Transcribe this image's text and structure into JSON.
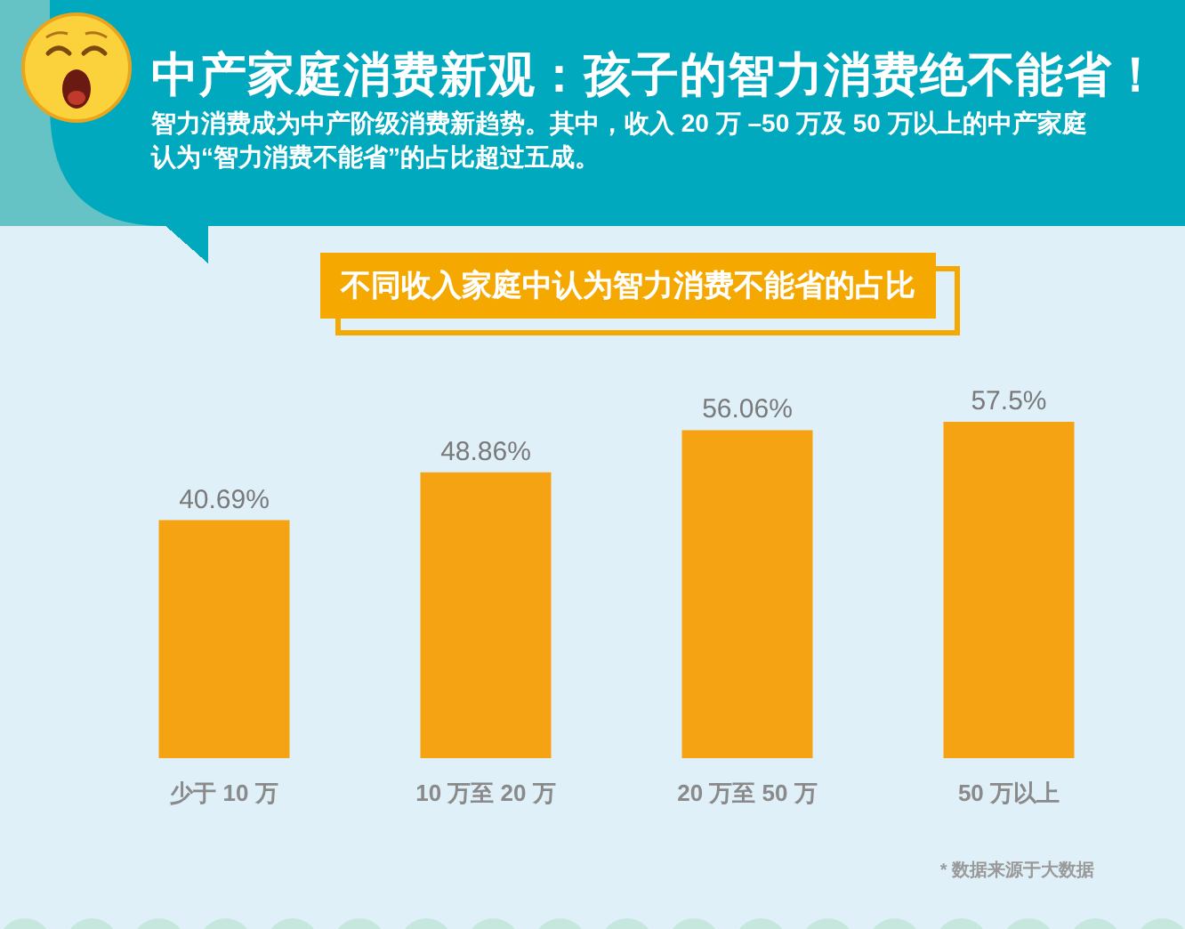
{
  "chart_data": {
    "type": "bar",
    "title": "中产家庭消费新观：孩子的智力消费绝不能省！",
    "subtitle": "智力消费成为中产阶级消费新趋势。其中，收入 20 万 –50 万及 50 万以上的中产家庭认为“智力消费不能省”的占比超过五成。",
    "categories": [
      "少于 10 万",
      "10 万至 20 万",
      "20 万至 50 万",
      "50 万以上"
    ],
    "values": [
      40.69,
      48.86,
      56.06,
      57.5
    ],
    "value_labels": [
      "40.69%",
      "48.86%",
      "56.06%",
      "57.5%"
    ],
    "color": "#f5a312",
    "tick_labels": "x",
    "annotations": [
      "不同收入家庭中认为智力消费不能省的占比",
      "* 数据来源于大数据"
    ]
  }
}
